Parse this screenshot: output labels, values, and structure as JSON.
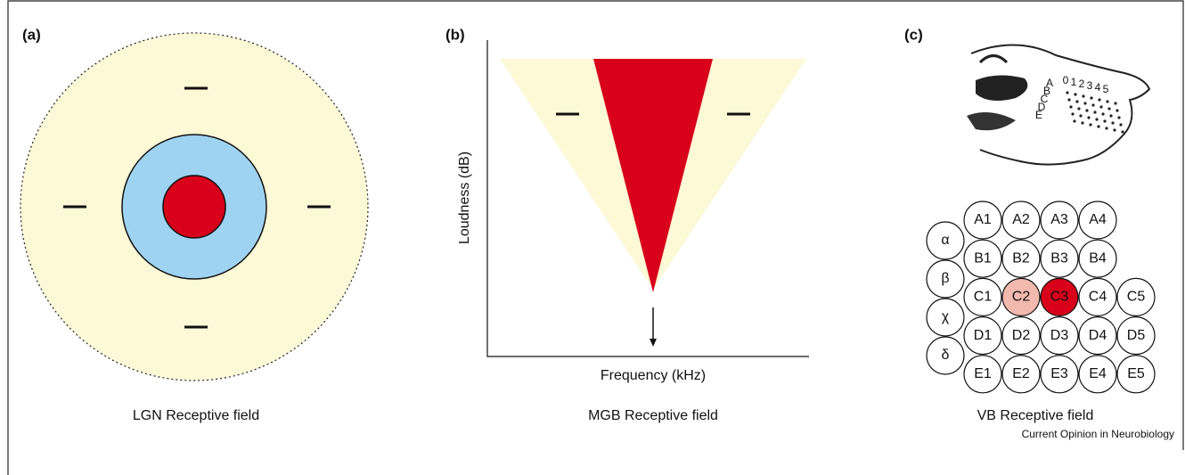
{
  "panels": [
    {
      "label": "(a)",
      "caption": "LGN Receptive field"
    },
    {
      "label": "(b)",
      "caption": "MGB Receptive field",
      "y_axis_label": "Loudness (dB)",
      "x_axis_label": "Frequency (kHz)"
    },
    {
      "label": "(c)",
      "caption": "VB Receptive field",
      "sketch_rows": [
        "A",
        "B",
        "C",
        "D",
        "E"
      ],
      "sketch_columns": [
        "0",
        "1",
        "2",
        "3",
        "4",
        "5"
      ],
      "greek": [
        "α",
        "β",
        "χ",
        "δ"
      ],
      "whisker_rows": [
        [
          "A1",
          "A2",
          "A3",
          "A4"
        ],
        [
          "B1",
          "B2",
          "B3",
          "B4"
        ],
        [
          "C1",
          "C2",
          "C3",
          "C4",
          "C5"
        ],
        [
          "D1",
          "D2",
          "D3",
          "D4",
          "D5"
        ],
        [
          "E1",
          "E2",
          "E3",
          "E4",
          "E5"
        ]
      ]
    }
  ],
  "source": "Current Opinion in Neurobiology"
}
